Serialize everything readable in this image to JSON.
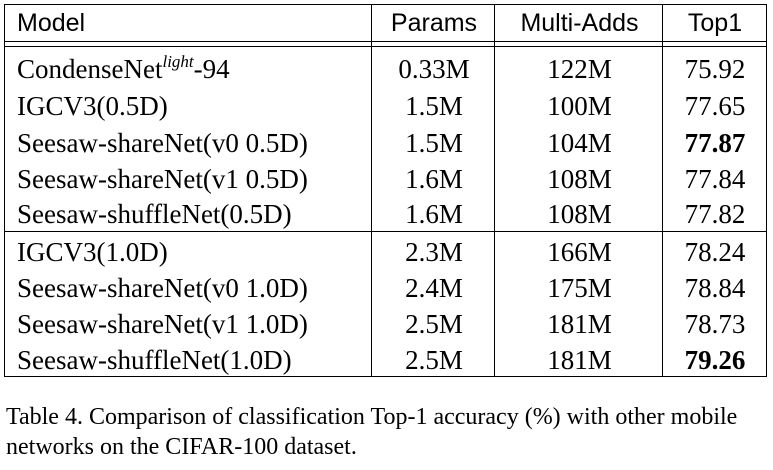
{
  "header": {
    "model": "Model",
    "params": "Params",
    "madds": "Multi-Adds",
    "top1": "Top1"
  },
  "rows": [
    {
      "model_base": "CondenseNet",
      "model_sup": "light",
      "model_tail": "-94",
      "params": "0.33M",
      "madds": "122M",
      "top1": "75.92",
      "bold": false
    },
    {
      "model_base": "IGCV3(0.5D)",
      "model_sup": "",
      "model_tail": "",
      "params": "1.5M",
      "madds": "100M",
      "top1": "77.65",
      "bold": false
    },
    {
      "model_base": "Seesaw-shareNet(v0 0.5D)",
      "model_sup": "",
      "model_tail": "",
      "params": "1.5M",
      "madds": "104M",
      "top1": "77.87",
      "bold": true
    },
    {
      "model_base": "Seesaw-shareNet(v1 0.5D)",
      "model_sup": "",
      "model_tail": "",
      "params": "1.6M",
      "madds": "108M",
      "top1": "77.84",
      "bold": false
    },
    {
      "model_base": "Seesaw-shuffleNet(0.5D)",
      "model_sup": "",
      "model_tail": "",
      "params": "1.6M",
      "madds": "108M",
      "top1": "77.82",
      "bold": false
    },
    {
      "model_base": "IGCV3(1.0D)",
      "model_sup": "",
      "model_tail": "",
      "params": "2.3M",
      "madds": "166M",
      "top1": "78.24",
      "bold": false
    },
    {
      "model_base": "Seesaw-shareNet(v0 1.0D)",
      "model_sup": "",
      "model_tail": "",
      "params": "2.4M",
      "madds": "175M",
      "top1": "78.84",
      "bold": false
    },
    {
      "model_base": "Seesaw-shareNet(v1 1.0D)",
      "model_sup": "",
      "model_tail": "",
      "params": "2.5M",
      "madds": "181M",
      "top1": "78.73",
      "bold": false
    },
    {
      "model_base": "Seesaw-shuffleNet(1.0D)",
      "model_sup": "",
      "model_tail": "",
      "params": "2.5M",
      "madds": "181M",
      "top1": "79.26",
      "bold": true
    }
  ],
  "caption": "Table 4. Comparison of classification Top-1 accuracy (%) with other mobile networks on the CIFAR-100 dataset."
}
